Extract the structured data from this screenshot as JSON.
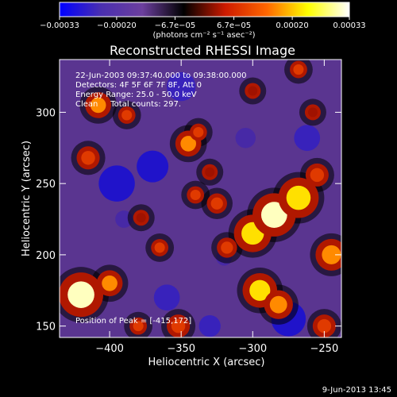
{
  "chart_data": {
    "type": "heatmap",
    "title": "Reconstructed RHESSI Image",
    "xlabel": "Heliocentric X (arcsec)",
    "ylabel": "Heliocentric Y (arcsec)",
    "xlim": [
      -435,
      -238
    ],
    "ylim": [
      142,
      337
    ],
    "x_ticks": [
      -400,
      -350,
      -300,
      -250
    ],
    "x_tick_labels": [
      "−400",
      "−350",
      "−300",
      "−250"
    ],
    "y_ticks": [
      150,
      200,
      250,
      300
    ],
    "y_tick_labels": [
      "150",
      "200",
      "250",
      "300"
    ],
    "colorbar": {
      "range": [
        -0.00033,
        0.00033
      ],
      "ticks": [
        -0.00033,
        -0.0002,
        -6.7e-05,
        6.7e-05,
        0.0002,
        0.00033
      ],
      "tick_labels": [
        "−0.00033",
        "−0.00020",
        "−6.7e−05",
        "6.7e−05",
        "0.00020",
        "0.00033"
      ],
      "unit_label": "(photons cm⁻² s⁻¹ asec⁻²)",
      "colormap": [
        "#0000ff",
        "#4a2fb0",
        "#6c3f9e",
        "#000000",
        "#cc1a00",
        "#ff6600",
        "#ffff00",
        "#ffffff"
      ]
    },
    "annotations": [
      "22-Jun-2003 09:37:40.000 to 09:38:00.000",
      "Detectors: 4F 5F 6F 7F 8F, Att 0",
      "Energy Range: 25.0 - 50.0 keV",
      "Clean     Total counts: 297."
    ],
    "peak_label": "Position of Peak = [-415,172]",
    "peak": {
      "x": -415,
      "y": 172
    },
    "hotspots": [
      {
        "x": -420,
        "y": 172,
        "value": 0.00033
      },
      {
        "x": -400,
        "y": 180,
        "value": 0.00018
      },
      {
        "x": -415,
        "y": 268,
        "value": 0.00016
      },
      {
        "x": -408,
        "y": 305,
        "value": 0.00018
      },
      {
        "x": -388,
        "y": 298,
        "value": 0.00012
      },
      {
        "x": -378,
        "y": 226,
        "value": 0.0001
      },
      {
        "x": -365,
        "y": 205,
        "value": 0.00012
      },
      {
        "x": -340,
        "y": 242,
        "value": 0.00012
      },
      {
        "x": -325,
        "y": 236,
        "value": 0.00014
      },
      {
        "x": -352,
        "y": 150,
        "value": 0.00016
      },
      {
        "x": -345,
        "y": 278,
        "value": 0.00018
      },
      {
        "x": -338,
        "y": 286,
        "value": 0.00012
      },
      {
        "x": -330,
        "y": 258,
        "value": 0.0001
      },
      {
        "x": -318,
        "y": 205,
        "value": 0.00014
      },
      {
        "x": -300,
        "y": 215,
        "value": 0.00026
      },
      {
        "x": -285,
        "y": 228,
        "value": 0.0003
      },
      {
        "x": -268,
        "y": 240,
        "value": 0.00028
      },
      {
        "x": -255,
        "y": 256,
        "value": 0.00016
      },
      {
        "x": -295,
        "y": 175,
        "value": 0.00024
      },
      {
        "x": -282,
        "y": 165,
        "value": 0.0002
      },
      {
        "x": -245,
        "y": 200,
        "value": 0.00022
      },
      {
        "x": -250,
        "y": 150,
        "value": 0.00016
      },
      {
        "x": -268,
        "y": 330,
        "value": 0.00012
      },
      {
        "x": -300,
        "y": 315,
        "value": 0.0001
      },
      {
        "x": -380,
        "y": 150,
        "value": 0.00012
      },
      {
        "x": -258,
        "y": 300,
        "value": 8e-05
      }
    ],
    "coldspots": [
      {
        "x": -395,
        "y": 250,
        "value": -0.00025
      },
      {
        "x": -370,
        "y": 262,
        "value": -0.00022
      },
      {
        "x": -350,
        "y": 318,
        "value": -0.0002
      },
      {
        "x": -360,
        "y": 170,
        "value": -0.00018
      },
      {
        "x": -330,
        "y": 150,
        "value": -0.00015
      },
      {
        "x": -275,
        "y": 155,
        "value": -0.00024
      },
      {
        "x": -262,
        "y": 282,
        "value": -0.00018
      },
      {
        "x": -390,
        "y": 225,
        "value": -0.00012
      },
      {
        "x": -305,
        "y": 282,
        "value": -0.00014
      },
      {
        "x": -320,
        "y": 198,
        "value": -0.0001
      }
    ]
  },
  "footer": {
    "date": "9-Jun-2013 13:45"
  }
}
